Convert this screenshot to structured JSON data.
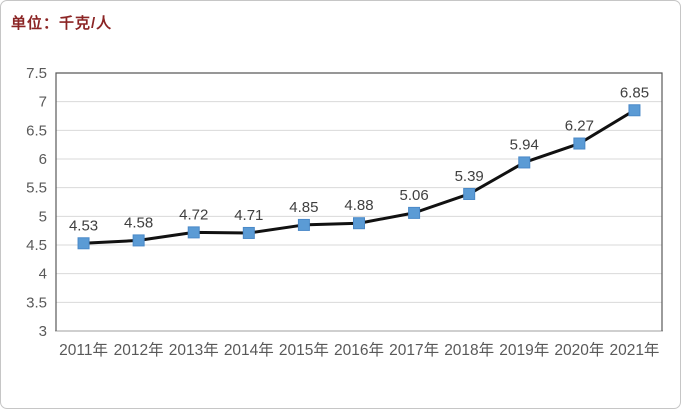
{
  "unit_label": "单位：千克/人",
  "chart_data": {
    "type": "line",
    "title": "单位：千克/人",
    "categories": [
      "2011年",
      "2012年",
      "2013年",
      "2014年",
      "2015年",
      "2016年",
      "2017年",
      "2018年",
      "2019年",
      "2020年",
      "2021年"
    ],
    "values": [
      4.53,
      4.58,
      4.72,
      4.71,
      4.85,
      4.88,
      5.06,
      5.39,
      5.94,
      6.27,
      6.85
    ],
    "data_labels": [
      "4.53",
      "4.58",
      "4.72",
      "4.71",
      "4.85",
      "4.88",
      "5.06",
      "5.39",
      "5.94",
      "6.27",
      "6.85"
    ],
    "xlabel": "",
    "ylabel": "",
    "ylim": [
      3,
      7.5
    ],
    "y_ticks": [
      3,
      3.5,
      4,
      4.5,
      5,
      5.5,
      6,
      6.5,
      7,
      7.5
    ],
    "grid": true,
    "legend": "none",
    "marker": "square",
    "colors": {
      "line": "#111111",
      "marker_fill": "#5b9bd5",
      "marker_border": "#4a89c8",
      "grid": "#d9d9d9",
      "axis_text": "#595959",
      "data_label": "#404040",
      "plot_border": "#595959",
      "bottom_axis": "#bfbfbf",
      "title": "#8b2424",
      "frame_border": "#c6c6c6"
    }
  }
}
